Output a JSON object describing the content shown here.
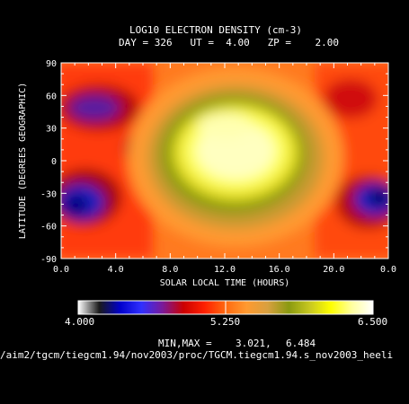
{
  "header": {
    "title": "LOG10 ELECTRON DENSITY (cm-3)",
    "subtitle": "DAY = 326   UT =  4.00   ZP =    2.00"
  },
  "footer": {
    "minmax_label": "MIN,MAX =",
    "min_value": "3.021,",
    "max_value": "6.484",
    "file_path": "/aim2/tgcm/tiegcm1.94/nov2003/proc/TGCM.tiegcm1.94.s_nov2003_heeli"
  },
  "chart_data": {
    "type": "heatmap",
    "title": "LOG10 ELECTRON DENSITY (cm-3)",
    "xlabel": "SOLAR LOCAL TIME (HOURS)",
    "ylabel": "LATITUDE (DEGREES GEOGRAPHIC)",
    "xlim": [
      0.0,
      24.0
    ],
    "ylim": [
      -90,
      90
    ],
    "x_ticks": [
      "0.0",
      "4.0",
      "8.0",
      "12.0",
      "16.0",
      "20.0",
      "0.0"
    ],
    "y_ticks": [
      "90",
      "60",
      "30",
      "0",
      "-30",
      "-60",
      "-90"
    ],
    "colorbar": {
      "min": "4.000",
      "mid": "5.250",
      "max": "6.500",
      "colors": [
        "#ffffff",
        "#1a1a1a",
        "#0000cc",
        "#3030ff",
        "#7a1a9a",
        "#cc0000",
        "#ff2000",
        "#ff6a10",
        "#ff9a30",
        "#d8a040",
        "#8a9a10",
        "#c8c820",
        "#ffff00",
        "#ffffa0",
        "#ffffff"
      ]
    },
    "field_features": [
      {
        "description": "dayside high density",
        "local_time": 13.0,
        "latitude": -5,
        "value": 6.4
      },
      {
        "description": "southern nightside trough",
        "local_time": 1.5,
        "latitude": -40,
        "value": 3.1
      },
      {
        "description": "southern nightside trough",
        "local_time": 23.0,
        "latitude": -40,
        "value": 3.5
      },
      {
        "description": "northern nightside depletion",
        "local_time": 4.0,
        "latitude": 45,
        "value": 4.6
      }
    ],
    "min": 3.021,
    "max": 6.484
  }
}
